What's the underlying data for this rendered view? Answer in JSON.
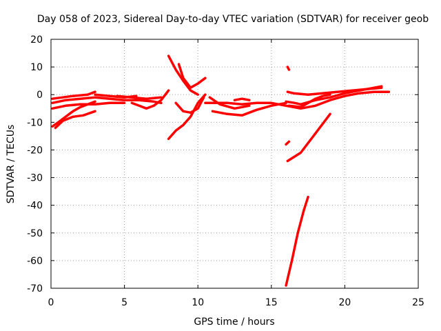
{
  "chart_data": {
    "type": "scatter",
    "title": "Day 058 of 2023, Sidereal Day-to-day VTEC variation (SDTVAR) for receiver geob",
    "xlabel": "GPS time / hours",
    "ylabel": "SDTVAR / TECUs",
    "xlim": [
      0,
      25
    ],
    "ylim": [
      -70,
      20
    ],
    "xticks": [
      "0",
      "5",
      "10",
      "15",
      "20",
      "25"
    ],
    "yticks": [
      "20",
      "10",
      "0",
      "-10",
      "-20",
      "-30",
      "-40",
      "-50",
      "-60",
      "-70"
    ],
    "grid": true,
    "color": "#ff0000",
    "series": [
      {
        "x": [
          0.1,
          1.0,
          2.0,
          3.0,
          4.0,
          5.0,
          6.0,
          7.0,
          7.5
        ],
        "y": [
          -3,
          -2,
          -1.5,
          -1,
          -1.5,
          -2,
          -2,
          -2.5,
          -3
        ]
      },
      {
        "x": [
          0.1,
          0.8,
          1.5,
          2.5,
          3.0
        ],
        "y": [
          -1.5,
          -1,
          -0.5,
          0,
          1
        ]
      },
      {
        "x": [
          0.1,
          1.0,
          2.0,
          3.0,
          4.0,
          5.0
        ],
        "y": [
          -5,
          -4,
          -3.5,
          -3.5,
          -3,
          -3
        ]
      },
      {
        "x": [
          0.1,
          0.5,
          1.0,
          1.5,
          2.0,
          2.5,
          3.0
        ],
        "y": [
          -11.5,
          -10,
          -8,
          -6,
          -4.5,
          -3.5,
          -2.5
        ]
      },
      {
        "x": [
          0.3,
          0.8,
          1.5,
          2.2,
          3.0
        ],
        "y": [
          -12,
          -9.5,
          -8,
          -7.5,
          -6
        ]
      },
      {
        "x": [
          3.0,
          4.0,
          5.0,
          5.8
        ],
        "y": [
          0,
          -0.5,
          -1,
          -0.5
        ]
      },
      {
        "x": [
          4.5,
          5.5,
          6.5,
          7.5
        ],
        "y": [
          -0.5,
          -1,
          -1.5,
          -1
        ]
      },
      {
        "x": [
          5.5,
          6.0,
          6.5,
          7.0,
          7.5,
          8.0
        ],
        "y": [
          -3,
          -4,
          -5,
          -4,
          -2,
          1.5
        ]
      },
      {
        "x": [
          8.0,
          8.5,
          9.0,
          9.5,
          10.0
        ],
        "y": [
          14,
          9,
          5,
          1.5,
          0
        ]
      },
      {
        "x": [
          8.7,
          9.0,
          9.5,
          10.0,
          10.5
        ],
        "y": [
          11,
          6,
          2.5,
          4,
          6
        ]
      },
      {
        "x": [
          8.0,
          8.5,
          9.0,
          9.5,
          10.0,
          10.5
        ],
        "y": [
          -16,
          -13,
          -11,
          -8,
          -3,
          0
        ]
      },
      {
        "x": [
          8.5,
          9.0,
          9.5,
          10.0,
          10.4
        ],
        "y": [
          -3,
          -6,
          -6.5,
          -5,
          -1
        ]
      },
      {
        "x": [
          10.5,
          11.0,
          12.0,
          13.0,
          14.0,
          15.0,
          16.0
        ],
        "y": [
          -3,
          -3,
          -3,
          -3.5,
          -3,
          -3,
          -4
        ]
      },
      {
        "x": [
          10.8,
          11.5,
          12.5,
          13.5
        ],
        "y": [
          -1,
          -3.5,
          -5,
          -4
        ]
      },
      {
        "x": [
          11.0,
          12.0,
          13.0,
          14.0,
          15.0,
          16.0
        ],
        "y": [
          -6,
          -7,
          -7.5,
          -5.5,
          -4,
          -3
        ]
      },
      {
        "x": [
          12.5,
          13.0,
          13.5
        ],
        "y": [
          -2,
          -1.5,
          -2
        ]
      },
      {
        "x": [
          16.1,
          16.2
        ],
        "y": [
          10,
          9
        ]
      },
      {
        "x": [
          16.0,
          17.0,
          18.0,
          19.0,
          20.0,
          21.0,
          22.0,
          23.0
        ],
        "y": [
          -4,
          -5,
          -4,
          -2,
          -0.5,
          0.5,
          1,
          1
        ]
      },
      {
        "x": [
          16.2,
          17.0,
          17.5,
          18.0,
          18.5,
          19.0
        ],
        "y": [
          -4,
          -4.5,
          -3,
          -1.5,
          -0.5,
          0
        ]
      },
      {
        "x": [
          16.1,
          16.5,
          17.5,
          18.5,
          19.5,
          20.5,
          21.5,
          22.5
        ],
        "y": [
          1,
          0.5,
          0,
          0.5,
          1,
          1.5,
          2,
          2.5
        ]
      },
      {
        "x": [
          16.0,
          16.6,
          17.0,
          18.0,
          19.0,
          20.0,
          21.0,
          22.0,
          22.5
        ],
        "y": [
          -2.5,
          -3,
          -3.5,
          -2,
          -1,
          0.5,
          1.5,
          2.5,
          3
        ]
      },
      {
        "x": [
          16.0,
          16.2
        ],
        "y": [
          -18,
          -17
        ]
      },
      {
        "x": [
          16.1,
          17.0,
          18.0,
          19.0
        ],
        "y": [
          -24,
          -21,
          -14,
          -7
        ]
      },
      {
        "x": [
          16.0,
          16.4,
          16.8,
          17.2,
          17.5
        ],
        "y": [
          -69,
          -60,
          -50,
          -42,
          -37
        ]
      }
    ]
  }
}
